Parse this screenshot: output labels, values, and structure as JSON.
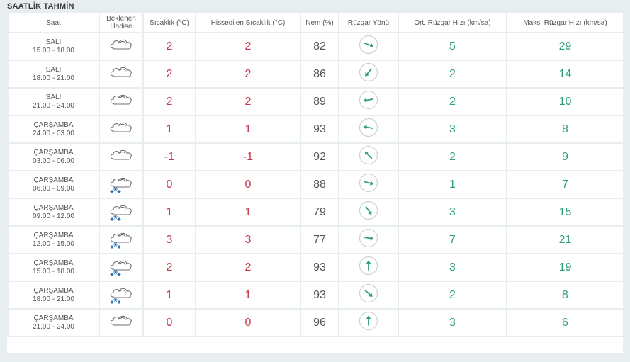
{
  "section_title": "SAATLİK TAHMİN",
  "columns": {
    "time": "Saat",
    "event_1": "Beklenen",
    "event_2": "Hadise",
    "temp": "Sıcaklık (°C)",
    "feels": "Hissedilen Sıcaklık (°C)",
    "humidity": "Nem (%)",
    "wind_dir": "Rüzgar Yönü",
    "avg_wind": "Ort. Rüzgar Hızı (km/sa)",
    "max_wind": "Maks. Rüzgar Hızı (km/sa)"
  },
  "colors": {
    "temperature": "#c0394b",
    "wind": "#2f9e7a",
    "humidity": "#555555"
  },
  "rows": [
    {
      "day": "SALI",
      "time": "15.00 - 18.00",
      "event": "cloudy-icon",
      "temp": "2",
      "feels": "2",
      "humidity": "82",
      "wind_dir_deg": 110,
      "avg_wind": "5",
      "max_wind": "29"
    },
    {
      "day": "SALI",
      "time": "18.00 - 21.00",
      "event": "cloudy-icon",
      "temp": "2",
      "feels": "2",
      "humidity": "86",
      "wind_dir_deg": 220,
      "avg_wind": "2",
      "max_wind": "14"
    },
    {
      "day": "SALI",
      "time": "21.00 - 24.00",
      "event": "cloudy-icon",
      "temp": "2",
      "feels": "2",
      "humidity": "89",
      "wind_dir_deg": 260,
      "avg_wind": "2",
      "max_wind": "10"
    },
    {
      "day": "ÇARŞAMBA",
      "time": "24.00 - 03.00",
      "event": "cloudy-icon",
      "temp": "1",
      "feels": "1",
      "humidity": "93",
      "wind_dir_deg": 280,
      "avg_wind": "3",
      "max_wind": "8"
    },
    {
      "day": "ÇARŞAMBA",
      "time": "03.00 - 06.00",
      "event": "cloudy-icon",
      "temp": "-1",
      "feels": "-1",
      "humidity": "92",
      "wind_dir_deg": 315,
      "avg_wind": "2",
      "max_wind": "9"
    },
    {
      "day": "ÇARŞAMBA",
      "time": "06.00 - 09.00",
      "event": "snow-icon",
      "temp": "0",
      "feels": "0",
      "humidity": "88",
      "wind_dir_deg": 105,
      "avg_wind": "1",
      "max_wind": "7"
    },
    {
      "day": "ÇARŞAMBA",
      "time": "09.00 - 12.00",
      "event": "snow-icon",
      "temp": "1",
      "feels": "1",
      "humidity": "79",
      "wind_dir_deg": 145,
      "avg_wind": "3",
      "max_wind": "15"
    },
    {
      "day": "ÇARŞAMBA",
      "time": "12.00 - 15.00",
      "event": "snow-icon",
      "temp": "3",
      "feels": "3",
      "humidity": "77",
      "wind_dir_deg": 100,
      "avg_wind": "7",
      "max_wind": "21"
    },
    {
      "day": "ÇARŞAMBA",
      "time": "15.00 - 18.00",
      "event": "snow-icon",
      "temp": "2",
      "feels": "2",
      "humidity": "93",
      "wind_dir_deg": 0,
      "avg_wind": "3",
      "max_wind": "19"
    },
    {
      "day": "ÇARŞAMBA",
      "time": "18.00 - 21.00",
      "event": "snow-icon",
      "temp": "1",
      "feels": "1",
      "humidity": "93",
      "wind_dir_deg": 130,
      "avg_wind": "2",
      "max_wind": "8"
    },
    {
      "day": "ÇARŞAMBA",
      "time": "21.00 - 24.00",
      "event": "cloudy-icon",
      "temp": "0",
      "feels": "0",
      "humidity": "96",
      "wind_dir_deg": 0,
      "avg_wind": "3",
      "max_wind": "6"
    }
  ]
}
